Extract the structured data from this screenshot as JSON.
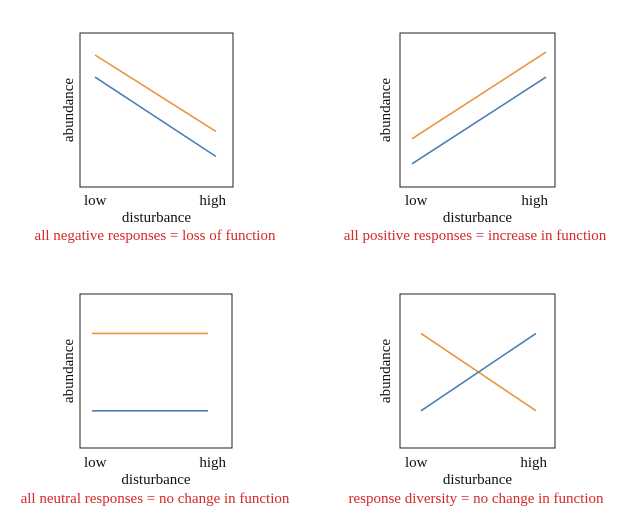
{
  "colors": {
    "series_orange": "#e8963c",
    "series_blue": "#4a7fb5",
    "caption": "#d42a2a",
    "frame": "#222222"
  },
  "chart_data": [
    {
      "type": "line",
      "xlabel": "disturbance",
      "ylabel": "abundance",
      "tick_labels": [
        "low",
        "high"
      ],
      "caption": "all negative responses = loss of function",
      "x": [
        0,
        1
      ],
      "ylim": [
        0,
        1
      ],
      "grid": false,
      "series": [
        {
          "values": [
            0.85,
            0.33
          ],
          "color": "#e8963c"
        },
        {
          "values": [
            0.7,
            0.16
          ],
          "color": "#4a7fb5"
        }
      ]
    },
    {
      "type": "line",
      "xlabel": "disturbance",
      "ylabel": "abundance",
      "tick_labels": [
        "low",
        "high"
      ],
      "caption": "all positive responses = increase in function",
      "x": [
        0,
        1
      ],
      "ylim": [
        0,
        1
      ],
      "grid": false,
      "series": [
        {
          "values": [
            0.28,
            0.87
          ],
          "color": "#e8963c"
        },
        {
          "values": [
            0.11,
            0.7
          ],
          "color": "#4a7fb5"
        }
      ]
    },
    {
      "type": "line",
      "xlabel": "disturbance",
      "ylabel": "abundance",
      "tick_labels": [
        "low",
        "high"
      ],
      "caption": "all neutral responses = no change in function",
      "x": [
        0,
        1
      ],
      "ylim": [
        0,
        1
      ],
      "grid": false,
      "series": [
        {
          "values": [
            0.73,
            0.73
          ],
          "color": "#e8963c"
        },
        {
          "values": [
            0.2,
            0.2
          ],
          "color": "#4a7fb5"
        }
      ]
    },
    {
      "type": "line",
      "xlabel": "disturbance",
      "ylabel": "abundance",
      "tick_labels": [
        "low",
        "high"
      ],
      "caption": "response diversity = no change in function",
      "x": [
        0,
        1
      ],
      "ylim": [
        0,
        1
      ],
      "grid": false,
      "series": [
        {
          "values": [
            0.73,
            0.2
          ],
          "color": "#e8963c"
        },
        {
          "values": [
            0.2,
            0.73
          ],
          "color": "#4a7fb5"
        }
      ]
    }
  ]
}
